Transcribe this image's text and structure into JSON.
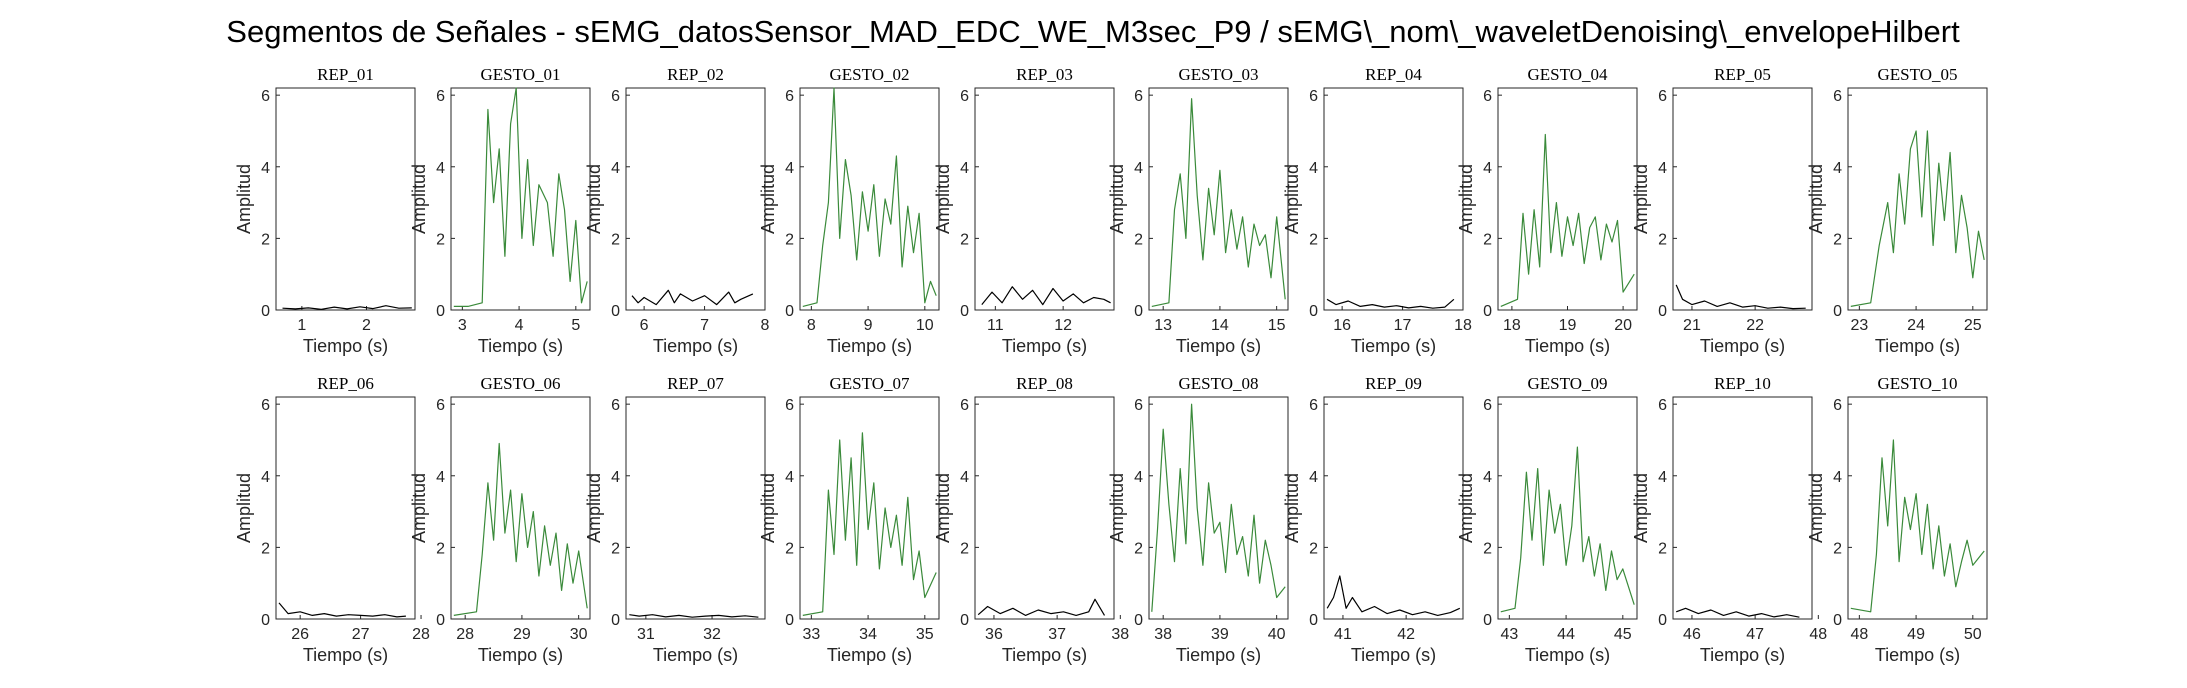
{
  "title": "Segmentos de Señales - sEMG_datosSensor_MAD_EDC_WE_M3sec_P9 / sEMG\\_nom\\_waveletDenoising\\_envelopeHilbert",
  "colors": {
    "rep": "#000000",
    "gesto": "#3a8a3a"
  },
  "chart_data": [
    {
      "type": "line",
      "title": "REP_01",
      "kind": "rep",
      "xlabel": "Tiempo (s)",
      "ylabel": "Amplitud",
      "xlim": [
        0.6,
        2.75
      ],
      "ylim": [
        0,
        6.2
      ],
      "xticks": [
        1,
        2
      ],
      "yticks": [
        0,
        2,
        4,
        6
      ],
      "x": [
        0.7,
        0.9,
        1.1,
        1.3,
        1.5,
        1.7,
        1.9,
        2.1,
        2.3,
        2.5,
        2.7
      ],
      "y": [
        0.05,
        0.03,
        0.06,
        0.02,
        0.08,
        0.03,
        0.09,
        0.04,
        0.12,
        0.05,
        0.06
      ]
    },
    {
      "type": "line",
      "title": "GESTO_01",
      "kind": "gesto",
      "xlabel": "Tiempo (s)",
      "ylabel": "Amplitud",
      "xlim": [
        2.8,
        5.25
      ],
      "ylim": [
        0,
        6.2
      ],
      "xticks": [
        3,
        4,
        5
      ],
      "yticks": [
        0,
        2,
        4,
        6
      ],
      "x": [
        2.85,
        3.1,
        3.35,
        3.45,
        3.55,
        3.65,
        3.75,
        3.85,
        3.95,
        4.05,
        4.15,
        4.25,
        4.35,
        4.5,
        4.6,
        4.7,
        4.8,
        4.9,
        5.0,
        5.1,
        5.2
      ],
      "y": [
        0.1,
        0.1,
        0.2,
        5.6,
        3.0,
        4.5,
        1.5,
        5.2,
        6.2,
        2.0,
        4.2,
        1.8,
        3.5,
        3.0,
        1.5,
        3.8,
        2.8,
        0.8,
        2.5,
        0.2,
        0.8
      ]
    },
    {
      "type": "line",
      "title": "REP_02",
      "kind": "rep",
      "xlabel": "Tiempo (s)",
      "ylabel": "Amplitud",
      "xlim": [
        5.7,
        8.0
      ],
      "ylim": [
        0,
        6.2
      ],
      "xticks": [
        6,
        7,
        8
      ],
      "yticks": [
        0,
        2,
        4,
        6
      ],
      "x": [
        5.8,
        5.9,
        6.0,
        6.2,
        6.4,
        6.5,
        6.6,
        6.8,
        7.0,
        7.2,
        7.4,
        7.5,
        7.6,
        7.8
      ],
      "y": [
        0.4,
        0.2,
        0.35,
        0.15,
        0.55,
        0.2,
        0.45,
        0.25,
        0.4,
        0.15,
        0.5,
        0.2,
        0.3,
        0.45
      ]
    },
    {
      "type": "line",
      "title": "GESTO_02",
      "kind": "gesto",
      "xlabel": "Tiempo (s)",
      "ylabel": "Amplitud",
      "xlim": [
        7.8,
        10.25
      ],
      "ylim": [
        0,
        6.2
      ],
      "xticks": [
        8,
        9,
        10
      ],
      "yticks": [
        0,
        2,
        4,
        6
      ],
      "x": [
        7.85,
        8.1,
        8.2,
        8.3,
        8.4,
        8.5,
        8.6,
        8.7,
        8.8,
        8.9,
        9.0,
        9.1,
        9.2,
        9.3,
        9.4,
        9.5,
        9.6,
        9.7,
        9.8,
        9.9,
        10.0,
        10.1,
        10.2
      ],
      "y": [
        0.1,
        0.2,
        1.8,
        3.0,
        6.2,
        2.0,
        4.2,
        3.2,
        1.4,
        3.3,
        2.2,
        3.5,
        1.5,
        3.1,
        2.4,
        4.3,
        1.2,
        2.9,
        1.6,
        2.7,
        0.2,
        0.8,
        0.4
      ]
    },
    {
      "type": "line",
      "title": "REP_03",
      "kind": "rep",
      "xlabel": "Tiempo (s)",
      "ylabel": "Amplitud",
      "xlim": [
        10.7,
        12.75
      ],
      "ylim": [
        0,
        6.2
      ],
      "xticks": [
        11,
        12
      ],
      "yticks": [
        0,
        2,
        4,
        6
      ],
      "x": [
        10.8,
        10.95,
        11.1,
        11.25,
        11.4,
        11.55,
        11.7,
        11.85,
        12.0,
        12.15,
        12.3,
        12.45,
        12.6,
        12.7
      ],
      "y": [
        0.15,
        0.5,
        0.2,
        0.65,
        0.3,
        0.55,
        0.15,
        0.6,
        0.25,
        0.45,
        0.2,
        0.35,
        0.3,
        0.2
      ]
    },
    {
      "type": "line",
      "title": "GESTO_03",
      "kind": "gesto",
      "xlabel": "Tiempo (s)",
      "ylabel": "Amplitud",
      "xlim": [
        12.75,
        15.2
      ],
      "ylim": [
        0,
        6.2
      ],
      "xticks": [
        13,
        14,
        15
      ],
      "yticks": [
        0,
        2,
        4,
        6
      ],
      "x": [
        12.8,
        13.1,
        13.2,
        13.3,
        13.4,
        13.5,
        13.6,
        13.7,
        13.8,
        13.9,
        14.0,
        14.1,
        14.2,
        14.3,
        14.4,
        14.5,
        14.6,
        14.7,
        14.8,
        14.9,
        15.0,
        15.15
      ],
      "y": [
        0.1,
        0.2,
        2.8,
        3.8,
        2.0,
        5.9,
        3.2,
        1.4,
        3.4,
        2.1,
        3.9,
        1.6,
        2.8,
        1.7,
        2.6,
        1.2,
        2.4,
        1.8,
        2.1,
        0.9,
        2.6,
        0.3
      ]
    },
    {
      "type": "line",
      "title": "REP_04",
      "kind": "rep",
      "xlabel": "Tiempo (s)",
      "ylabel": "Amplitud",
      "xlim": [
        15.7,
        18.0
      ],
      "ylim": [
        0,
        6.2
      ],
      "xticks": [
        16,
        17,
        18
      ],
      "yticks": [
        0,
        2,
        4,
        6
      ],
      "x": [
        15.75,
        15.9,
        16.1,
        16.3,
        16.5,
        16.7,
        16.9,
        17.1,
        17.3,
        17.5,
        17.7,
        17.85
      ],
      "y": [
        0.3,
        0.15,
        0.25,
        0.1,
        0.15,
        0.08,
        0.12,
        0.06,
        0.1,
        0.05,
        0.08,
        0.3
      ]
    },
    {
      "type": "line",
      "title": "GESTO_04",
      "kind": "gesto",
      "xlabel": "Tiempo (s)",
      "ylabel": "Amplitud",
      "xlim": [
        17.75,
        20.25
      ],
      "ylim": [
        0,
        6.2
      ],
      "xticks": [
        18,
        19,
        20
      ],
      "yticks": [
        0,
        2,
        4,
        6
      ],
      "x": [
        17.8,
        18.1,
        18.2,
        18.3,
        18.4,
        18.5,
        18.6,
        18.7,
        18.8,
        18.9,
        19.0,
        19.1,
        19.2,
        19.3,
        19.4,
        19.5,
        19.6,
        19.7,
        19.8,
        19.9,
        20.0,
        20.2
      ],
      "y": [
        0.1,
        0.3,
        2.7,
        1.0,
        2.8,
        1.2,
        4.9,
        1.6,
        3.0,
        1.5,
        2.6,
        1.8,
        2.7,
        1.3,
        2.3,
        2.6,
        1.4,
        2.4,
        1.9,
        2.5,
        0.5,
        1.0
      ]
    },
    {
      "type": "line",
      "title": "REP_05",
      "kind": "rep",
      "xlabel": "Tiempo (s)",
      "ylabel": "Amplitud",
      "xlim": [
        20.7,
        22.9
      ],
      "ylim": [
        0,
        6.2
      ],
      "xticks": [
        21,
        22
      ],
      "yticks": [
        0,
        2,
        4,
        6
      ],
      "x": [
        20.75,
        20.85,
        21.0,
        21.2,
        21.4,
        21.6,
        21.8,
        22.0,
        22.2,
        22.4,
        22.6,
        22.8
      ],
      "y": [
        0.7,
        0.3,
        0.15,
        0.25,
        0.1,
        0.2,
        0.08,
        0.12,
        0.05,
        0.08,
        0.04,
        0.05
      ]
    },
    {
      "type": "line",
      "title": "GESTO_05",
      "kind": "gesto",
      "xlabel": "Tiempo (s)",
      "ylabel": "Amplitud",
      "xlim": [
        22.8,
        25.25
      ],
      "ylim": [
        0,
        6.2
      ],
      "xticks": [
        23,
        24,
        25
      ],
      "yticks": [
        0,
        2,
        4,
        6
      ],
      "x": [
        22.85,
        23.2,
        23.35,
        23.5,
        23.6,
        23.7,
        23.8,
        23.9,
        24.0,
        24.1,
        24.2,
        24.3,
        24.4,
        24.5,
        24.6,
        24.7,
        24.8,
        24.9,
        25.0,
        25.1,
        25.2
      ],
      "y": [
        0.1,
        0.2,
        1.8,
        3.0,
        1.6,
        3.8,
        2.4,
        4.5,
        5.0,
        2.6,
        5.0,
        1.8,
        4.1,
        2.5,
        4.4,
        1.6,
        3.2,
        2.3,
        0.9,
        2.2,
        1.4
      ]
    },
    {
      "type": "line",
      "title": "REP_06",
      "kind": "rep",
      "xlabel": "Tiempo (s)",
      "ylabel": "Amplitud",
      "xlim": [
        25.6,
        27.9
      ],
      "ylim": [
        0,
        6.2
      ],
      "xticks": [
        26,
        27,
        28
      ],
      "yticks": [
        0,
        2,
        4,
        6
      ],
      "x": [
        25.65,
        25.8,
        26.0,
        26.2,
        26.4,
        26.6,
        26.8,
        27.0,
        27.2,
        27.4,
        27.6,
        27.75
      ],
      "y": [
        0.45,
        0.15,
        0.2,
        0.1,
        0.15,
        0.08,
        0.12,
        0.1,
        0.08,
        0.12,
        0.06,
        0.08
      ]
    },
    {
      "type": "line",
      "title": "GESTO_06",
      "kind": "gesto",
      "xlabel": "Tiempo (s)",
      "ylabel": "Amplitud",
      "xlim": [
        27.75,
        30.2
      ],
      "ylim": [
        0,
        6.2
      ],
      "xticks": [
        28,
        29,
        30
      ],
      "yticks": [
        0,
        2,
        4,
        6
      ],
      "x": [
        27.8,
        28.2,
        28.3,
        28.4,
        28.5,
        28.6,
        28.7,
        28.8,
        28.9,
        29.0,
        29.1,
        29.2,
        29.3,
        29.4,
        29.5,
        29.6,
        29.7,
        29.8,
        29.9,
        30.0,
        30.15
      ],
      "y": [
        0.1,
        0.2,
        1.8,
        3.8,
        2.2,
        4.9,
        2.4,
        3.6,
        1.6,
        3.5,
        2.0,
        3.0,
        1.2,
        2.6,
        1.5,
        2.4,
        0.8,
        2.1,
        1.0,
        1.9,
        0.3
      ]
    },
    {
      "type": "line",
      "title": "REP_07",
      "kind": "rep",
      "xlabel": "Tiempo (s)",
      "ylabel": "Amplitud",
      "xlim": [
        30.7,
        32.8
      ],
      "ylim": [
        0,
        6.2
      ],
      "xticks": [
        31,
        32
      ],
      "yticks": [
        0,
        2,
        4,
        6
      ],
      "x": [
        30.75,
        30.9,
        31.1,
        31.3,
        31.5,
        31.7,
        31.9,
        32.1,
        32.3,
        32.5,
        32.7
      ],
      "y": [
        0.12,
        0.08,
        0.12,
        0.06,
        0.1,
        0.05,
        0.08,
        0.1,
        0.06,
        0.09,
        0.05
      ]
    },
    {
      "type": "line",
      "title": "GESTO_07",
      "kind": "gesto",
      "xlabel": "Tiempo (s)",
      "ylabel": "Amplitud",
      "xlim": [
        32.8,
        35.25
      ],
      "ylim": [
        0,
        6.2
      ],
      "xticks": [
        33,
        34,
        35
      ],
      "yticks": [
        0,
        2,
        4,
        6
      ],
      "x": [
        32.85,
        33.2,
        33.3,
        33.4,
        33.5,
        33.6,
        33.7,
        33.8,
        33.9,
        34.0,
        34.1,
        34.2,
        34.3,
        34.4,
        34.5,
        34.6,
        34.7,
        34.8,
        34.9,
        35.0,
        35.2
      ],
      "y": [
        0.1,
        0.2,
        3.6,
        1.8,
        5.0,
        2.2,
        4.5,
        1.5,
        5.2,
        2.5,
        3.8,
        1.4,
        3.1,
        2.0,
        2.9,
        1.5,
        3.4,
        1.1,
        1.9,
        0.6,
        1.3
      ]
    },
    {
      "type": "line",
      "title": "REP_08",
      "kind": "rep",
      "xlabel": "Tiempo (s)",
      "ylabel": "Amplitud",
      "xlim": [
        35.7,
        37.9
      ],
      "ylim": [
        0,
        6.2
      ],
      "xticks": [
        36,
        37,
        38
      ],
      "yticks": [
        0,
        2,
        4,
        6
      ],
      "x": [
        35.75,
        35.9,
        36.1,
        36.3,
        36.5,
        36.7,
        36.9,
        37.1,
        37.3,
        37.5,
        37.6,
        37.75
      ],
      "y": [
        0.12,
        0.35,
        0.15,
        0.3,
        0.1,
        0.25,
        0.15,
        0.2,
        0.1,
        0.2,
        0.55,
        0.1
      ]
    },
    {
      "type": "line",
      "title": "GESTO_08",
      "kind": "gesto",
      "xlabel": "Tiempo (s)",
      "ylabel": "Amplitud",
      "xlim": [
        37.75,
        40.2
      ],
      "ylim": [
        0,
        6.2
      ],
      "xticks": [
        38,
        39,
        40
      ],
      "yticks": [
        0,
        2,
        4,
        6
      ],
      "x": [
        37.8,
        37.9,
        38.0,
        38.1,
        38.2,
        38.3,
        38.4,
        38.5,
        38.6,
        38.7,
        38.8,
        38.9,
        39.0,
        39.1,
        39.2,
        39.3,
        39.4,
        39.5,
        39.6,
        39.7,
        39.8,
        39.9,
        40.0,
        40.15
      ],
      "y": [
        0.2,
        2.5,
        5.3,
        3.2,
        1.6,
        4.2,
        2.1,
        6.0,
        3.1,
        1.5,
        3.8,
        2.4,
        2.7,
        1.3,
        3.2,
        1.8,
        2.3,
        1.2,
        2.9,
        1.0,
        2.2,
        1.5,
        0.6,
        0.9
      ]
    },
    {
      "type": "line",
      "title": "REP_09",
      "kind": "rep",
      "xlabel": "Tiempo (s)",
      "ylabel": "Amplitud",
      "xlim": [
        40.7,
        42.9
      ],
      "ylim": [
        0,
        6.2
      ],
      "xticks": [
        41,
        42
      ],
      "yticks": [
        0,
        2,
        4,
        6
      ],
      "x": [
        40.75,
        40.85,
        40.95,
        41.05,
        41.15,
        41.3,
        41.5,
        41.7,
        41.9,
        42.1,
        42.3,
        42.5,
        42.7,
        42.85
      ],
      "y": [
        0.3,
        0.6,
        1.2,
        0.3,
        0.6,
        0.2,
        0.35,
        0.15,
        0.25,
        0.12,
        0.2,
        0.1,
        0.18,
        0.3
      ]
    },
    {
      "type": "line",
      "title": "GESTO_09",
      "kind": "gesto",
      "xlabel": "Tiempo (s)",
      "ylabel": "Amplitud",
      "xlim": [
        42.8,
        45.25
      ],
      "ylim": [
        0,
        6.2
      ],
      "xticks": [
        43,
        44,
        45
      ],
      "yticks": [
        0,
        2,
        4,
        6
      ],
      "x": [
        42.85,
        43.1,
        43.2,
        43.3,
        43.4,
        43.5,
        43.6,
        43.7,
        43.8,
        43.9,
        44.0,
        44.1,
        44.2,
        44.3,
        44.4,
        44.5,
        44.6,
        44.7,
        44.8,
        44.9,
        45.0,
        45.2
      ],
      "y": [
        0.2,
        0.3,
        1.7,
        4.1,
        2.2,
        4.2,
        1.5,
        3.6,
        2.4,
        3.2,
        1.5,
        2.6,
        4.8,
        1.6,
        2.3,
        1.2,
        2.1,
        0.8,
        1.9,
        1.1,
        1.4,
        0.4
      ]
    },
    {
      "type": "line",
      "title": "REP_10",
      "kind": "rep",
      "xlabel": "Tiempo (s)",
      "ylabel": "Amplitud",
      "xlim": [
        45.7,
        47.9
      ],
      "ylim": [
        0,
        6.2
      ],
      "xticks": [
        46,
        47,
        48
      ],
      "yticks": [
        0,
        2,
        4,
        6
      ],
      "x": [
        45.75,
        45.9,
        46.1,
        46.3,
        46.5,
        46.7,
        46.9,
        47.1,
        47.3,
        47.5,
        47.7
      ],
      "y": [
        0.2,
        0.3,
        0.15,
        0.25,
        0.1,
        0.2,
        0.08,
        0.15,
        0.06,
        0.12,
        0.05
      ]
    },
    {
      "type": "line",
      "title": "GESTO_10",
      "kind": "gesto",
      "xlabel": "Tiempo (s)",
      "ylabel": "Amplitud",
      "xlim": [
        47.8,
        50.25
      ],
      "ylim": [
        0,
        6.2
      ],
      "xticks": [
        48,
        49,
        50
      ],
      "yticks": [
        0,
        2,
        4,
        6
      ],
      "x": [
        47.85,
        48.2,
        48.3,
        48.4,
        48.5,
        48.6,
        48.7,
        48.8,
        48.9,
        49.0,
        49.1,
        49.2,
        49.3,
        49.4,
        49.5,
        49.6,
        49.7,
        49.8,
        49.9,
        50.0,
        50.2
      ],
      "y": [
        0.3,
        0.2,
        1.8,
        4.5,
        2.6,
        5.0,
        1.6,
        3.4,
        2.5,
        3.5,
        1.8,
        3.2,
        1.4,
        2.6,
        1.2,
        2.1,
        0.9,
        1.6,
        2.2,
        1.5,
        1.9
      ]
    }
  ]
}
